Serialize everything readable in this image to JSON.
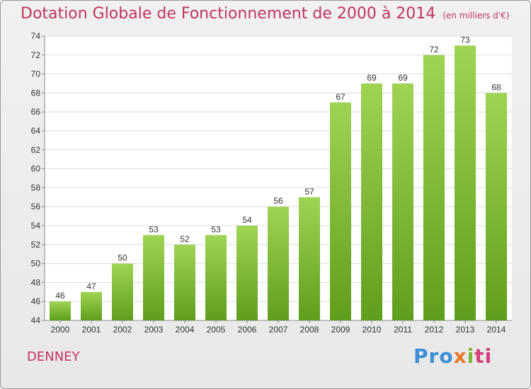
{
  "chart_data": {
    "type": "bar",
    "title": "Dotation Globale de Fonctionnement de 2000 à 2014",
    "subtitle": "(en milliers d'€)",
    "categories": [
      "2000",
      "2001",
      "2002",
      "2003",
      "2004",
      "2005",
      "2006",
      "2007",
      "2008",
      "2009",
      "2010",
      "2011",
      "2012",
      "2013",
      "2014"
    ],
    "values": [
      46,
      47,
      50,
      53,
      52,
      53,
      54,
      56,
      57,
      67,
      69,
      69,
      72,
      73,
      68
    ],
    "ylim": [
      44,
      74
    ],
    "yticks": [
      44,
      46,
      48,
      50,
      52,
      54,
      56,
      58,
      60,
      62,
      64,
      66,
      68,
      70,
      72,
      74
    ],
    "xlabel": "",
    "ylabel": "",
    "grid": true,
    "bar_color": "#7cb82f"
  },
  "footer": {
    "commune": "DENNEY",
    "brand": "Proxiti",
    "brand_parts": [
      "Pro",
      "x",
      "i",
      "ti"
    ]
  }
}
